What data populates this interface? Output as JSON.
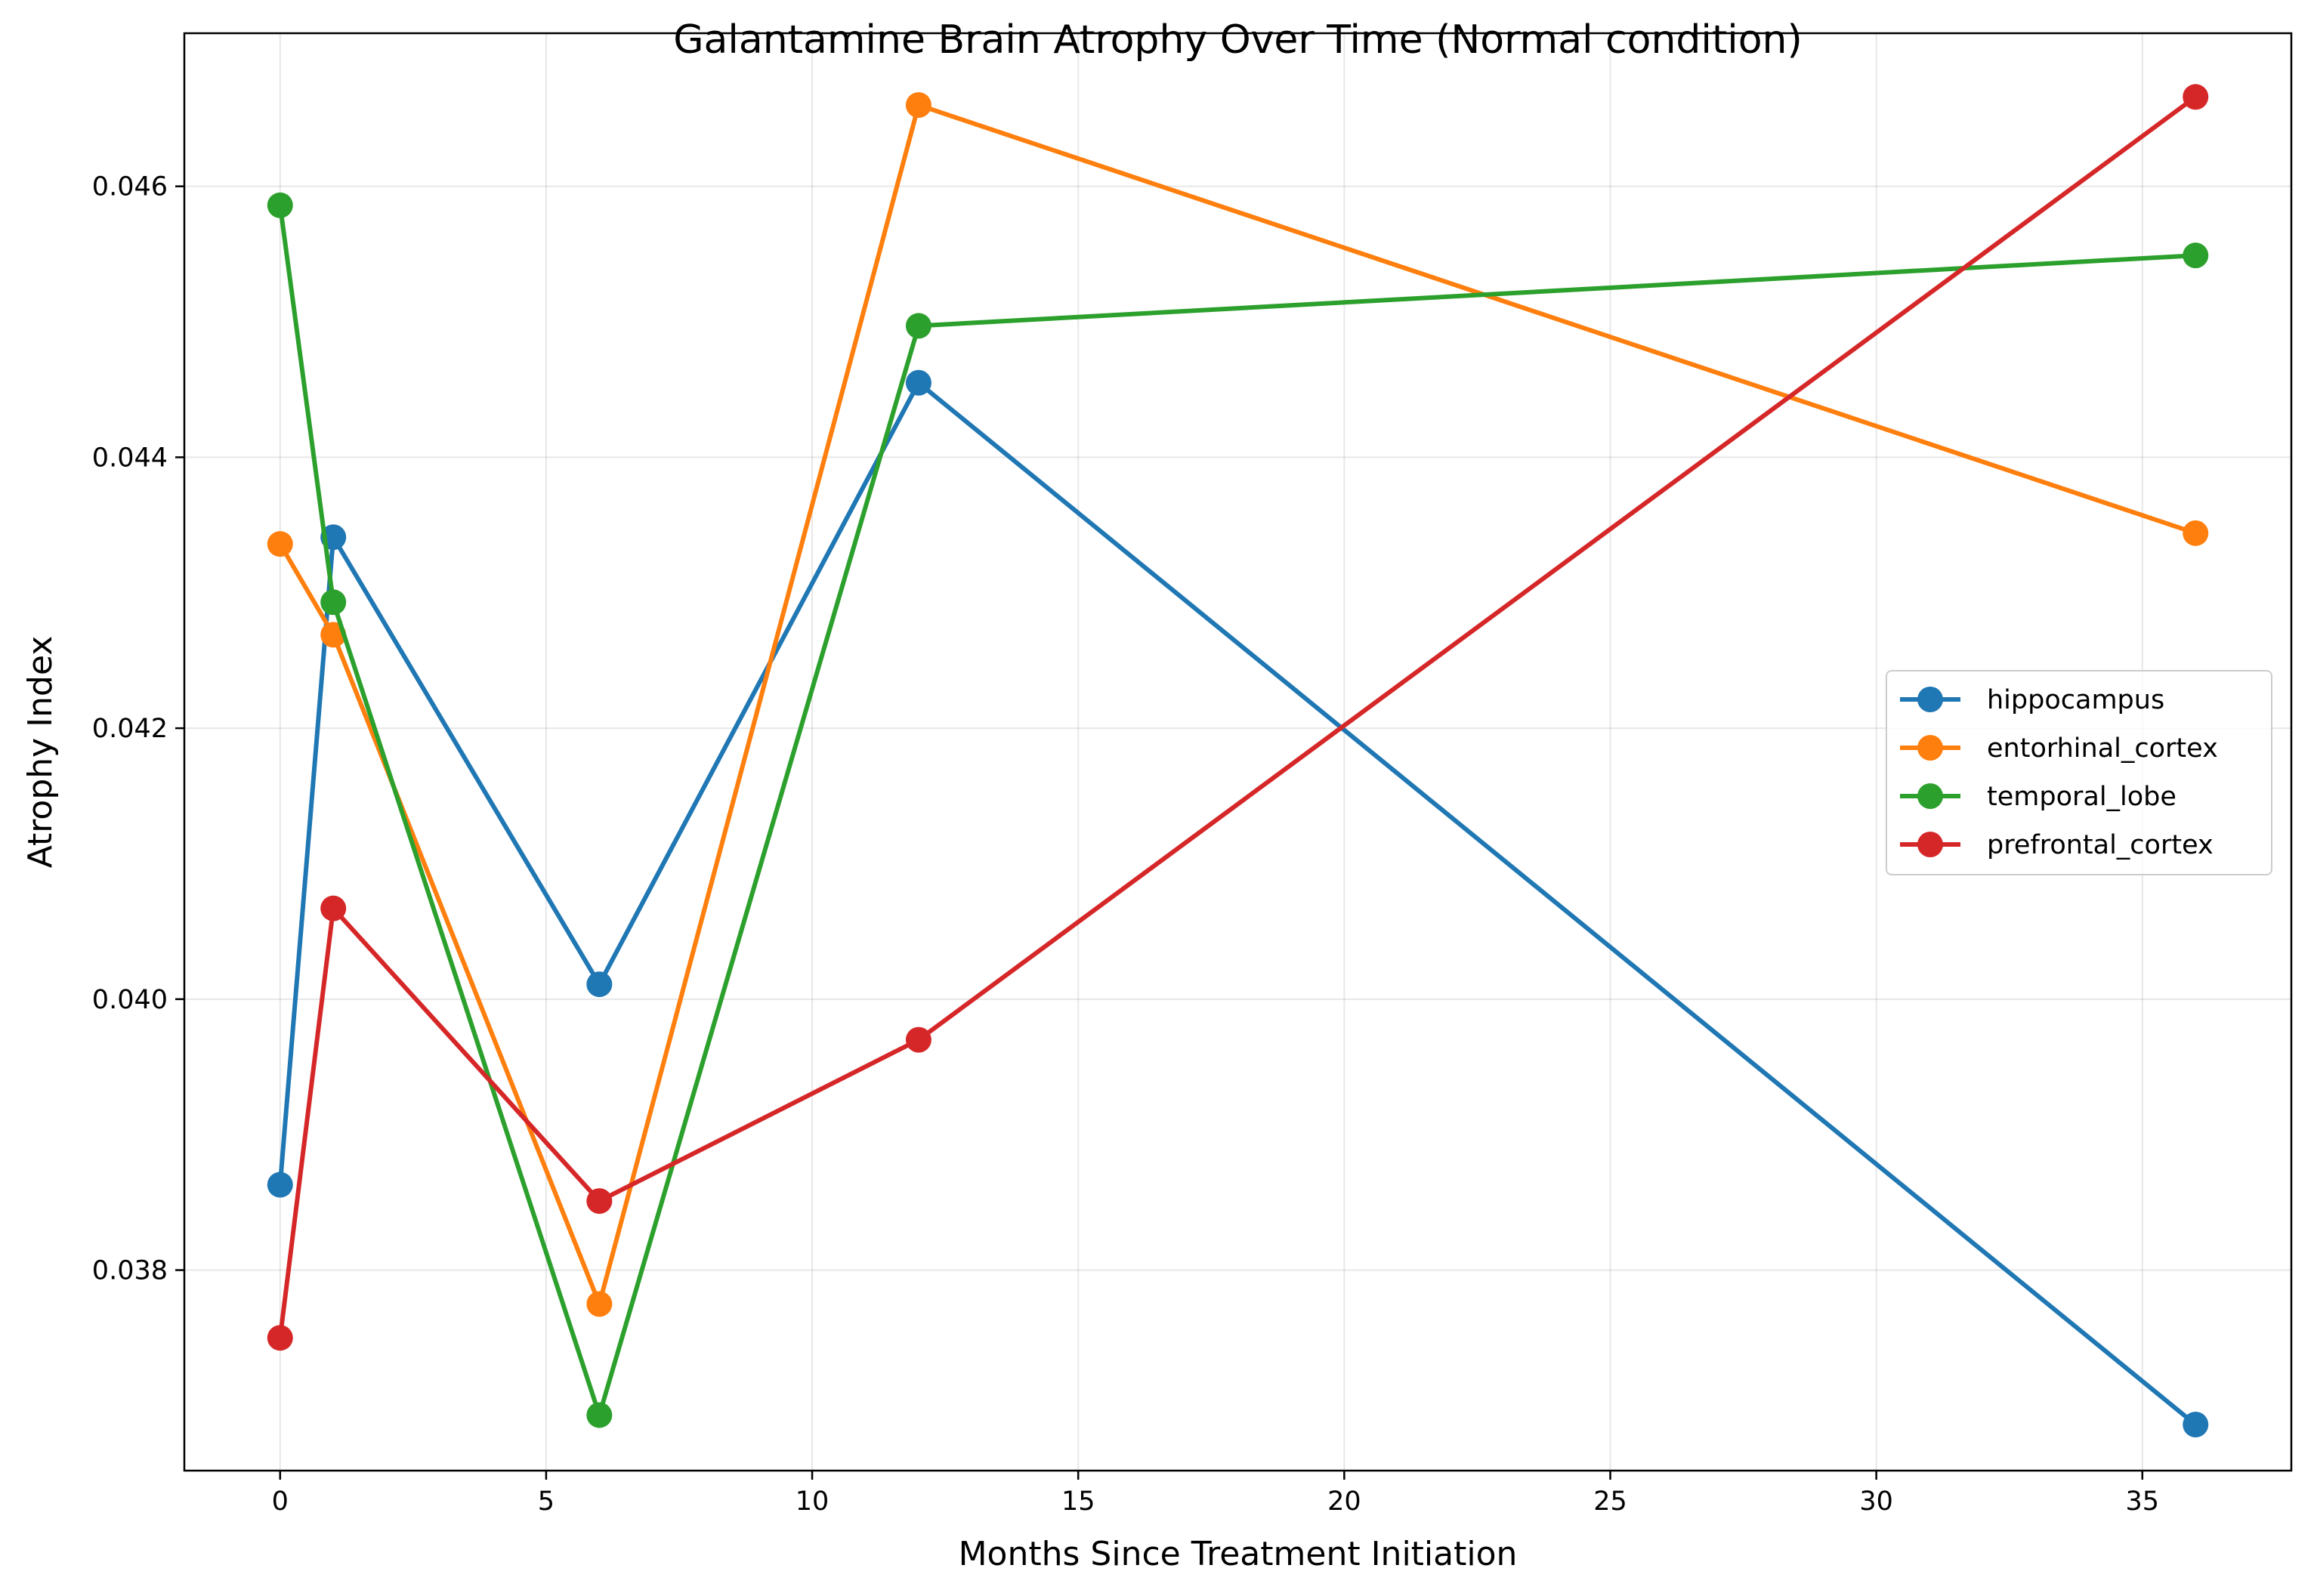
{
  "chart_data": {
    "type": "line",
    "title": "Galantamine Brain Atrophy Over Time (Normal condition)",
    "xlabel": "Months Since Treatment Initiation",
    "ylabel": "Atrophy Index",
    "xlim": [
      -1.8,
      37.8
    ],
    "ylim": [
      0.03652,
      0.04713
    ],
    "xticks": [
      0,
      5,
      10,
      15,
      20,
      25,
      30,
      35
    ],
    "xtick_labels": [
      "0",
      "5",
      "10",
      "15",
      "20",
      "25",
      "30",
      "35"
    ],
    "yticks": [
      0.038,
      0.04,
      0.042,
      0.044,
      0.046
    ],
    "ytick_labels": [
      "0.038",
      "0.040",
      "0.042",
      "0.044",
      "0.046"
    ],
    "grid": true,
    "legend_position": "center-right",
    "x": [
      0,
      1,
      6,
      12,
      36
    ],
    "series": [
      {
        "name": "hippocampus",
        "color": "#1f77b4",
        "values": [
          0.03863,
          0.04341,
          0.04011,
          0.04455,
          0.03686
        ]
      },
      {
        "name": "entorhinal_cortex",
        "color": "#ff7f0e",
        "values": [
          0.04336,
          0.04269,
          0.03775,
          0.0466,
          0.04344
        ]
      },
      {
        "name": "temporal_lobe",
        "color": "#2ca02c",
        "values": [
          0.04586,
          0.04293,
          0.03693,
          0.04497,
          0.04549
        ]
      },
      {
        "name": "prefrontal_cortex",
        "color": "#d62728",
        "values": [
          0.0375,
          0.04067,
          0.03851,
          0.0397,
          0.04666
        ]
      }
    ]
  }
}
